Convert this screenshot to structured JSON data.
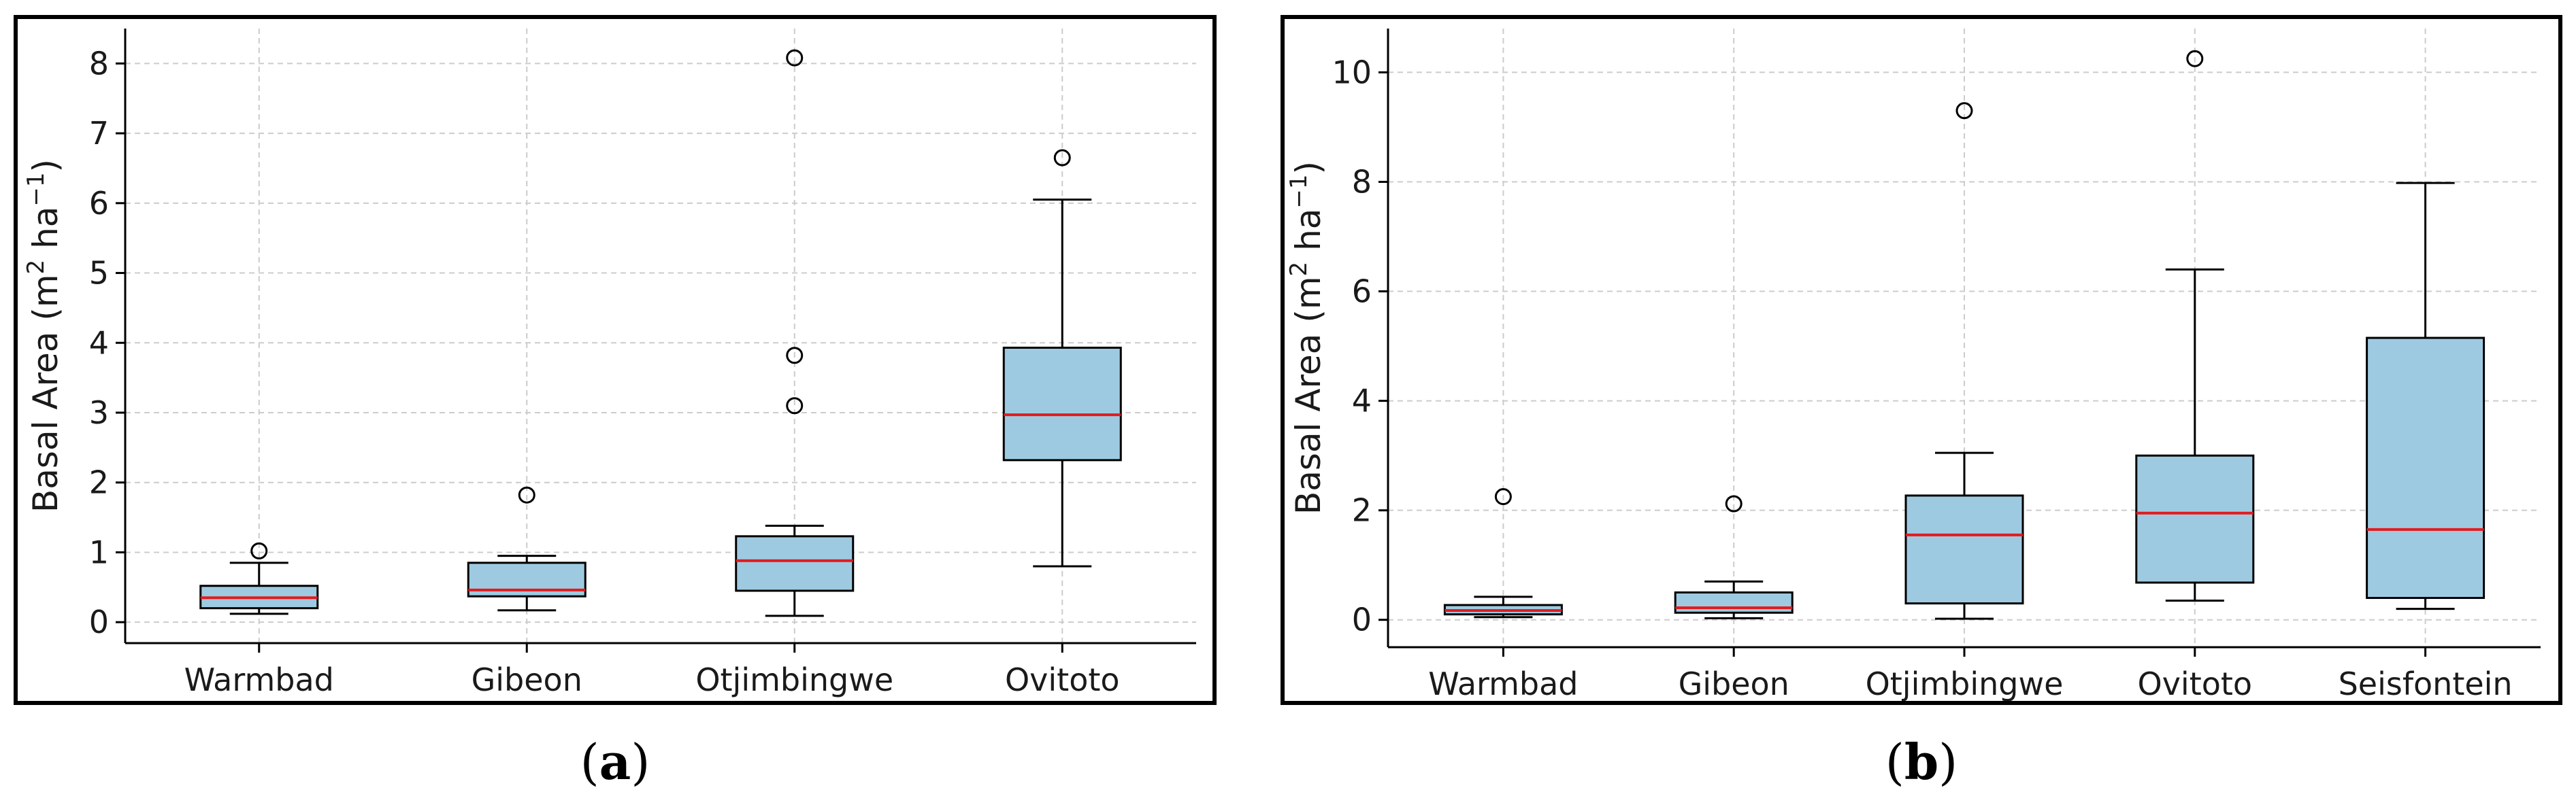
{
  "colors": {
    "box_fill": "#9ecae1",
    "median": "#e31a1c",
    "grid": "#cccccc"
  },
  "sublabels": {
    "a": "a",
    "b": "b"
  },
  "chart_data": [
    {
      "type": "box",
      "panel": "a",
      "title": "",
      "xlabel": "",
      "ylabel_base": "Basal Area (m",
      "ylabel_sup1": "2",
      "ylabel_mid": " ha",
      "ylabel_sup2": "−1",
      "ylabel_end": ")",
      "ylim": [
        -0.3,
        8.5
      ],
      "yticks": [
        0,
        1,
        2,
        3,
        4,
        5,
        6,
        7,
        8
      ],
      "grid": true,
      "categories": [
        "Warmbad",
        "Gibeon",
        "Otjimbingwe",
        "Ovitoto"
      ],
      "boxes": [
        {
          "category": "Warmbad",
          "whislo": 0.12,
          "q1": 0.2,
          "med": 0.35,
          "q3": 0.52,
          "whishi": 0.85,
          "fliers": [
            1.02
          ]
        },
        {
          "category": "Gibeon",
          "whislo": 0.17,
          "q1": 0.37,
          "med": 0.46,
          "q3": 0.85,
          "whishi": 0.95,
          "fliers": [
            1.82
          ]
        },
        {
          "category": "Otjimbingwe",
          "whislo": 0.09,
          "q1": 0.45,
          "med": 0.88,
          "q3": 1.23,
          "whishi": 1.38,
          "fliers": [
            3.1,
            3.82,
            8.08
          ]
        },
        {
          "category": "Ovitoto",
          "whislo": 0.8,
          "q1": 2.32,
          "med": 2.97,
          "q3": 3.93,
          "whishi": 6.05,
          "fliers": [
            6.65
          ]
        }
      ]
    },
    {
      "type": "box",
      "panel": "b",
      "title": "",
      "xlabel": "",
      "ylabel_base": "Basal Area (m",
      "ylabel_sup1": "2",
      "ylabel_mid": " ha",
      "ylabel_sup2": "−1",
      "ylabel_end": ")",
      "ylim": [
        -0.5,
        10.8
      ],
      "yticks": [
        0,
        2,
        4,
        6,
        8,
        10
      ],
      "grid": true,
      "categories": [
        "Warmbad",
        "Gibeon",
        "Otjimbingwe",
        "Ovitoto",
        "Seisfontein"
      ],
      "boxes": [
        {
          "category": "Warmbad",
          "whislo": 0.05,
          "q1": 0.1,
          "med": 0.17,
          "q3": 0.27,
          "whishi": 0.42,
          "fliers": [
            2.25
          ]
        },
        {
          "category": "Gibeon",
          "whislo": 0.03,
          "q1": 0.13,
          "med": 0.22,
          "q3": 0.5,
          "whishi": 0.7,
          "fliers": [
            2.12
          ]
        },
        {
          "category": "Otjimbingwe",
          "whislo": 0.02,
          "q1": 0.3,
          "med": 1.55,
          "q3": 2.27,
          "whishi": 3.05,
          "fliers": [
            9.3
          ]
        },
        {
          "category": "Ovitoto",
          "whislo": 0.35,
          "q1": 0.68,
          "med": 1.95,
          "q3": 3.0,
          "whishi": 6.4,
          "fliers": [
            10.25
          ]
        },
        {
          "category": "Seisfontein",
          "whislo": 0.2,
          "q1": 0.4,
          "med": 1.65,
          "q3": 5.15,
          "whishi": 7.98,
          "fliers": []
        }
      ]
    }
  ]
}
